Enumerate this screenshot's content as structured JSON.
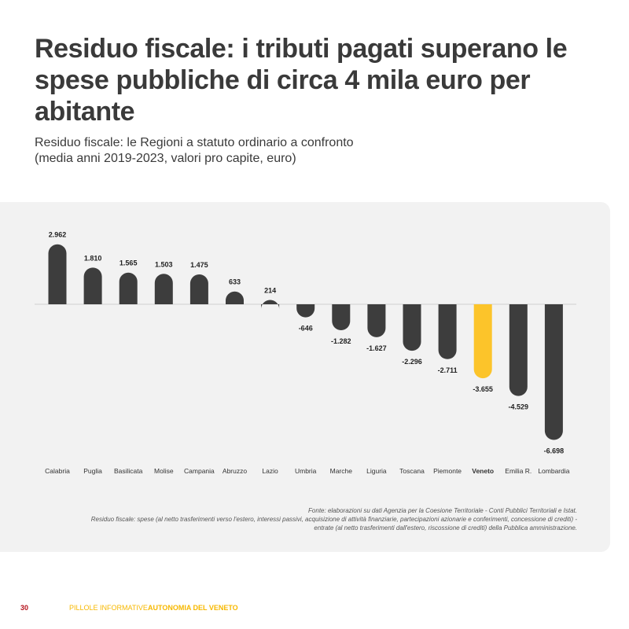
{
  "header": {
    "title": "Residuo fiscale: i tributi pagati superano le spese pubbliche di circa 4 mila euro per abitante",
    "subtitle_line1": "Residuo fiscale: le Regioni a statuto ordinario a confronto",
    "subtitle_line2": "(media anni 2019-2023, valori pro capite, euro)"
  },
  "chart_data": {
    "type": "bar",
    "categories": [
      "Calabria",
      "Puglia",
      "Basilicata",
      "Molise",
      "Campania",
      "Abruzzo",
      "Lazio",
      "Umbria",
      "Marche",
      "Liguria",
      "Toscana",
      "Piemonte",
      "Veneto",
      "Emilia R.",
      "Lombardia"
    ],
    "values": [
      2962,
      1810,
      1565,
      1503,
      1475,
      633,
      214,
      -646,
      -1282,
      -1627,
      -2296,
      -2711,
      -3655,
      -4529,
      -6698
    ],
    "value_labels": [
      "2.962",
      "1.810",
      "1.565",
      "1.503",
      "1.475",
      "633",
      "214",
      "-646",
      "-1.282",
      "-1.627",
      "-2.296",
      "-2.711",
      "-3.655",
      "-4.529",
      "-6.698"
    ],
    "highlight": "Veneto",
    "colors": {
      "bar": "#3d3d3d",
      "highlight": "#fcc42a",
      "baseline": "#d0d0d0"
    }
  },
  "notes": {
    "source": "Fonte: elaborazioni su dati Agenzia per la Coesione Territoriale - Conti Pubblici Territoriali e Istat.",
    "definition_line1": "Residuo fiscale: spese (al netto trasferimenti verso l'estero, interessi passivi, acquisizione di attività finanziarie, partecipazioni azionarie e conferimenti, concessione di crediti) -",
    "definition_line2": "entrate (al netto trasferimenti dall'estero, riscossione di crediti) della Pubblica amministrazione."
  },
  "footer": {
    "page_number": "30",
    "series": "PILLOLE INFORMATIVE",
    "theme": "AUTONOMIA DEL VENETO"
  }
}
